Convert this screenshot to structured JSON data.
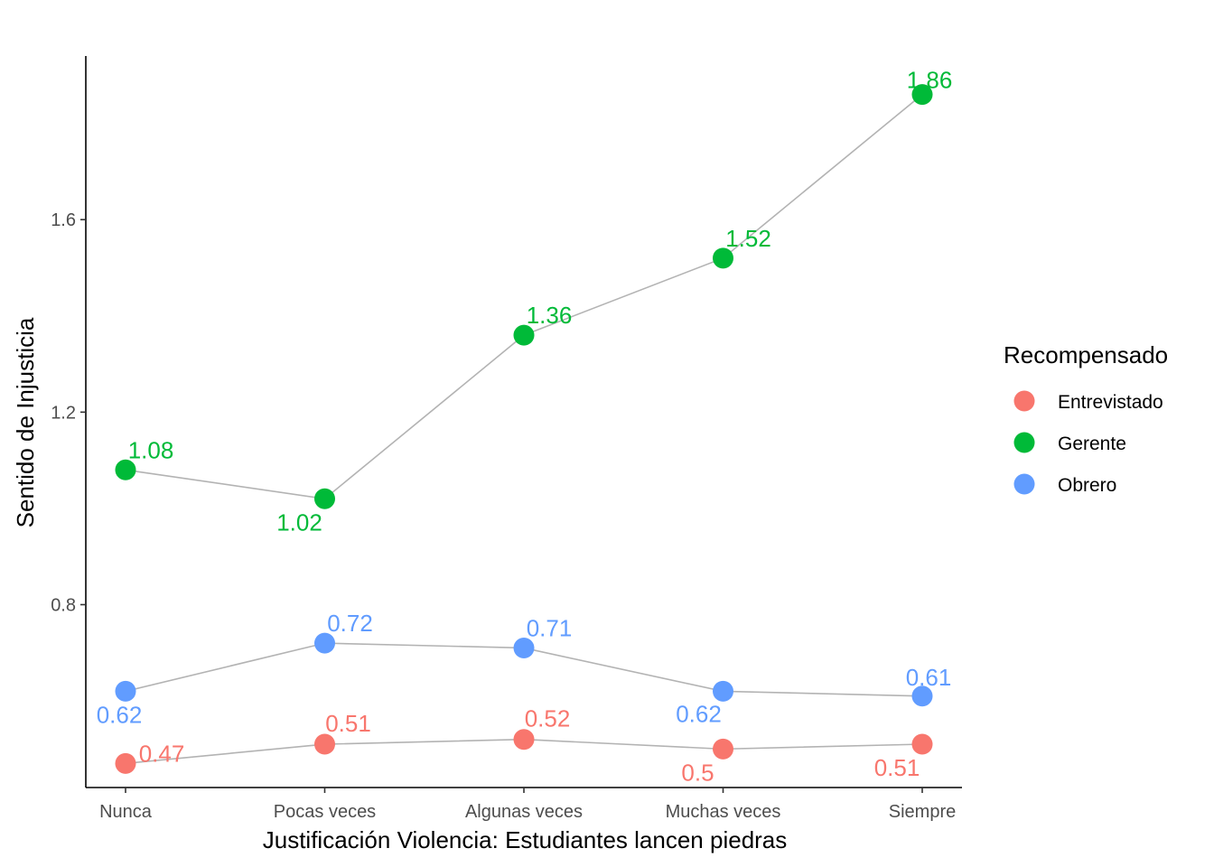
{
  "chart_data": {
    "type": "line",
    "title": "",
    "xlabel": "Justificación Violencia: Estudiantes lancen piedras",
    "ylabel": "Sentido de Injusticia",
    "categories": [
      "Nunca",
      "Pocas veces",
      "Algunas veces",
      "Muchas veces",
      "Siempre"
    ],
    "ylim": [
      0.42,
      1.94
    ],
    "y_ticks": [
      {
        "value": 0.8,
        "label": "0.8"
      },
      {
        "value": 1.2,
        "label": "1.2"
      },
      {
        "value": 1.6,
        "label": "1.6"
      }
    ],
    "grid": false,
    "legend": {
      "title": "Recompensado",
      "position": "right"
    },
    "line_color": "#b3b3b3",
    "series": [
      {
        "name": "Entrevistado",
        "color": "#F8766D",
        "values": [
          0.47,
          0.51,
          0.52,
          0.5,
          0.51
        ],
        "labels": [
          "0.47",
          "0.51",
          "0.52",
          "0.5",
          "0.51"
        ]
      },
      {
        "name": "Gerente",
        "color": "#00BA38",
        "values": [
          1.08,
          1.02,
          1.36,
          1.52,
          1.86
        ],
        "labels": [
          "1.08",
          "1.02",
          "1.36",
          "1.52",
          "1.86"
        ]
      },
      {
        "name": "Obrero",
        "color": "#619CFF",
        "values": [
          0.62,
          0.72,
          0.71,
          0.62,
          0.61
        ],
        "labels": [
          "0.62",
          "0.72",
          "0.71",
          "0.62",
          "0.61"
        ]
      }
    ]
  }
}
